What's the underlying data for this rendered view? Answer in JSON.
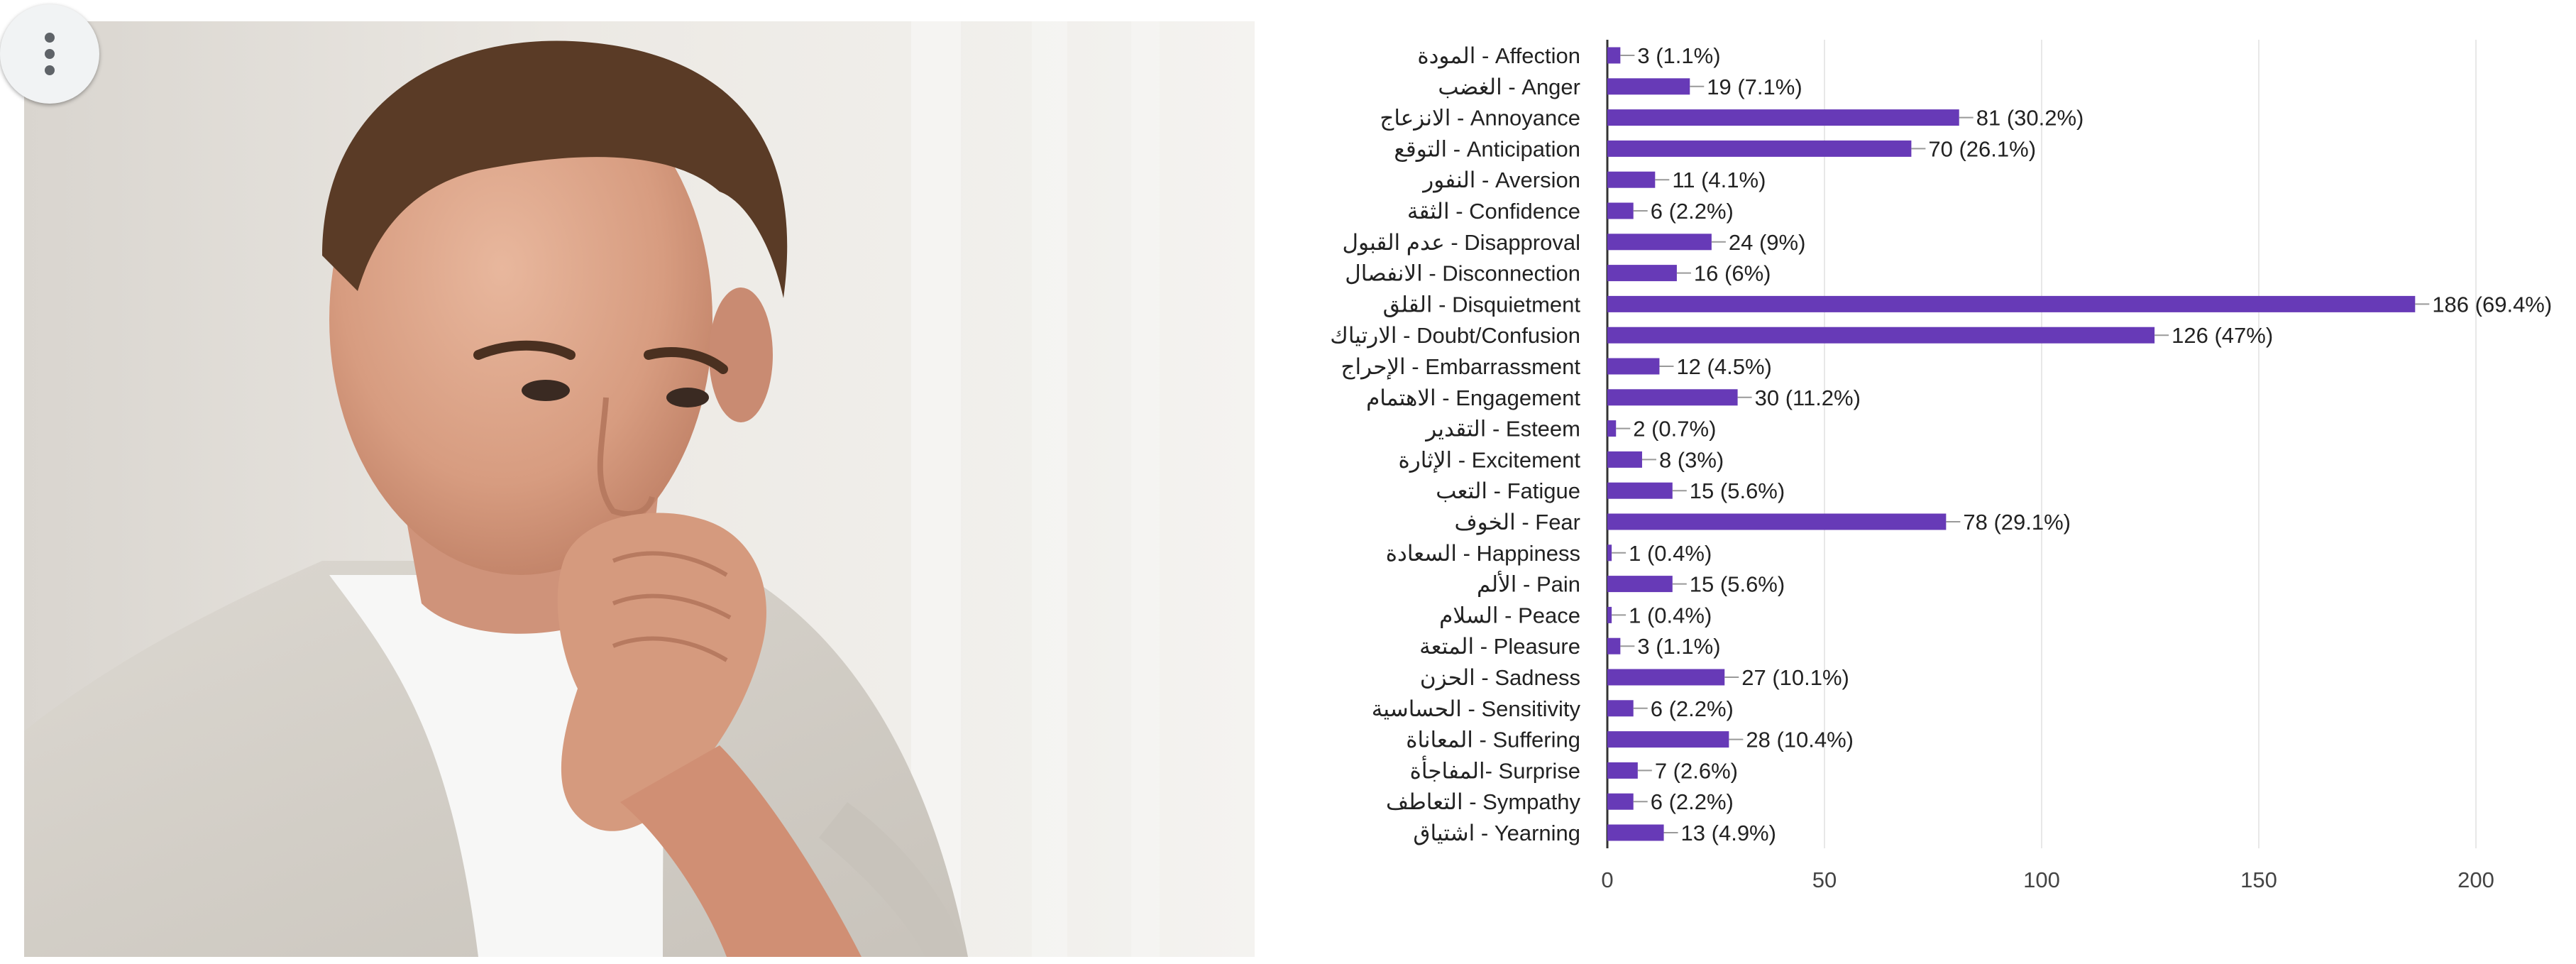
{
  "photo": {
    "subject": "man with hand on chin, thinking"
  },
  "menu": {
    "icon": "more-vertical-icon"
  },
  "colors": {
    "bar": "#673ab7",
    "grid": "#e8e8e8",
    "axis": "#333333",
    "text": "#222222",
    "label_text": "#444444"
  },
  "chart_data": {
    "type": "bar",
    "orientation": "horizontal",
    "categories": [
      "المودة - Affection",
      "الغضب - Anger",
      "الانزعاج - Annoyance",
      "التوقع - Anticipation",
      "النفور - Aversion",
      "الثقة - Confidence",
      "عدم القبول - Disapproval",
      "الانفصال - Disconnection",
      "القلق - Disquietment",
      "الارتياك - Doubt/Confusion",
      "الإحراج - Embarrassment",
      "الاهتمام - Engagement",
      "التقدير - Esteem",
      "الإثارة - Excitement",
      "التعب - Fatigue",
      "الخوف - Fear",
      "السعادة - Happiness",
      "الألم - Pain",
      "السلام - Peace",
      "المتعة - Pleasure",
      "الحزن - Sadness",
      "الحساسية - Sensitivity",
      "المعاناة - Suffering",
      "المفاجأة- Surprise",
      "التعاطف - Sympathy",
      "اشتياق - Yearning"
    ],
    "values": [
      3,
      19,
      81,
      70,
      11,
      6,
      24,
      16,
      186,
      126,
      12,
      30,
      2,
      8,
      15,
      78,
      1,
      15,
      1,
      3,
      27,
      6,
      28,
      7,
      6,
      13
    ],
    "data_labels": [
      "3 (1.1%)",
      "19 (7.1%)",
      "81 (30.2%)",
      "70 (26.1%)",
      "11 (4.1%)",
      "6 (2.2%)",
      "24 (9%)",
      "16 (6%)",
      "186 (69.4%)",
      "126 (47%)",
      "12 (4.5%)",
      "30 (11.2%)",
      "2 (0.7%)",
      "8 (3%)",
      "15 (5.6%)",
      "78 (29.1%)",
      "1 (0.4%)",
      "15 (5.6%)",
      "1 (0.4%)",
      "3 (1.1%)",
      "27 (10.1%)",
      "6 (2.2%)",
      "28 (10.4%)",
      "7 (2.6%)",
      "6 (2.2%)",
      "13 (4.9%)"
    ],
    "xlim": [
      0,
      200
    ],
    "xticks": [
      0,
      50,
      100,
      150,
      200
    ],
    "grid": true,
    "legend": "none"
  }
}
